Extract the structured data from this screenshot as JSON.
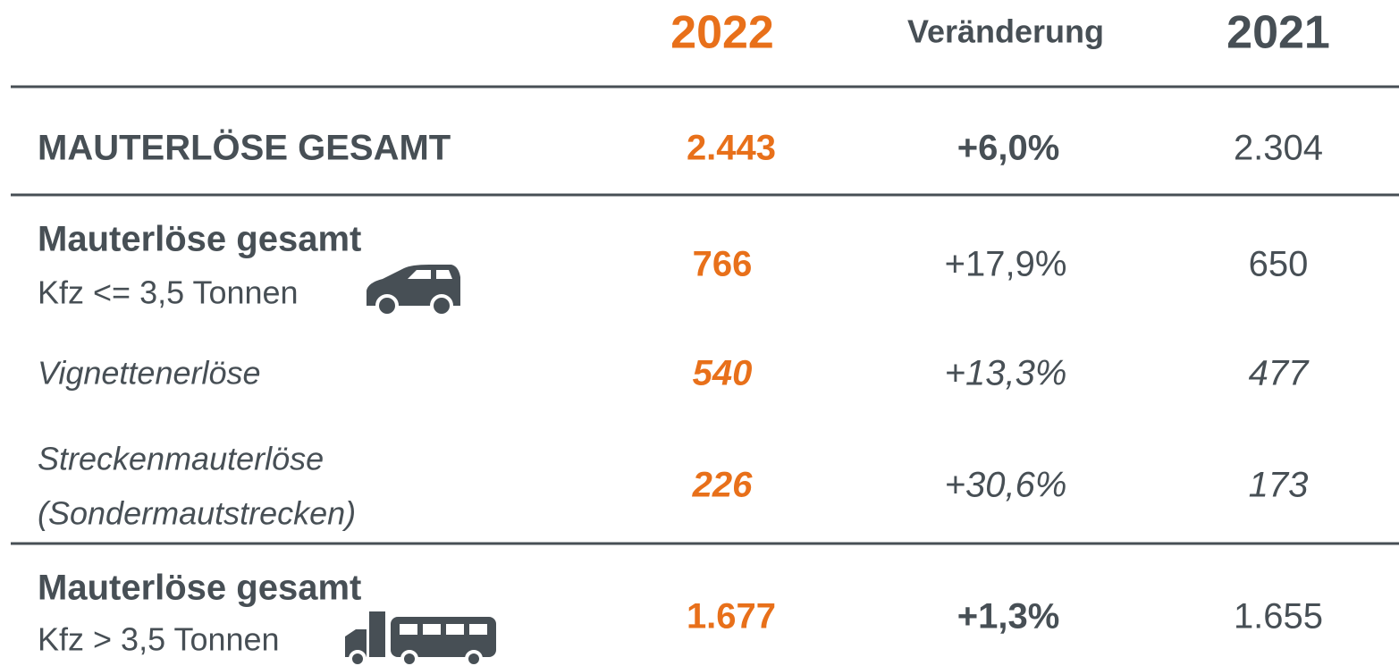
{
  "header": {
    "columns": [
      "2022",
      "Veränderung",
      "2021"
    ]
  },
  "table": {
    "rows": [
      {
        "label": [
          "MAUTERLÖSE GESAMT"
        ],
        "cells": [
          "2.443",
          "+6,0%",
          "2.304"
        ]
      },
      {
        "label": [
          "Mauterlöse gesamt",
          "Kfz <= 3,5 Tonnen"
        ],
        "cells": [
          "766",
          "+17,9%",
          "650"
        ]
      },
      {
        "label": [
          "Vignettenerlöse"
        ],
        "cells": [
          "540",
          "+13,3%",
          "477"
        ]
      },
      {
        "label": [
          "Streckenmauterlöse",
          "(Sondermautstrecken)"
        ],
        "cells": [
          "226",
          "+30,6%",
          "173"
        ]
      },
      {
        "label": [
          "Mauterlöse gesamt",
          "Kfz > 3,5 Tonnen"
        ],
        "cells": [
          "1.677",
          "+1,3%",
          "1.655"
        ]
      }
    ]
  }
}
